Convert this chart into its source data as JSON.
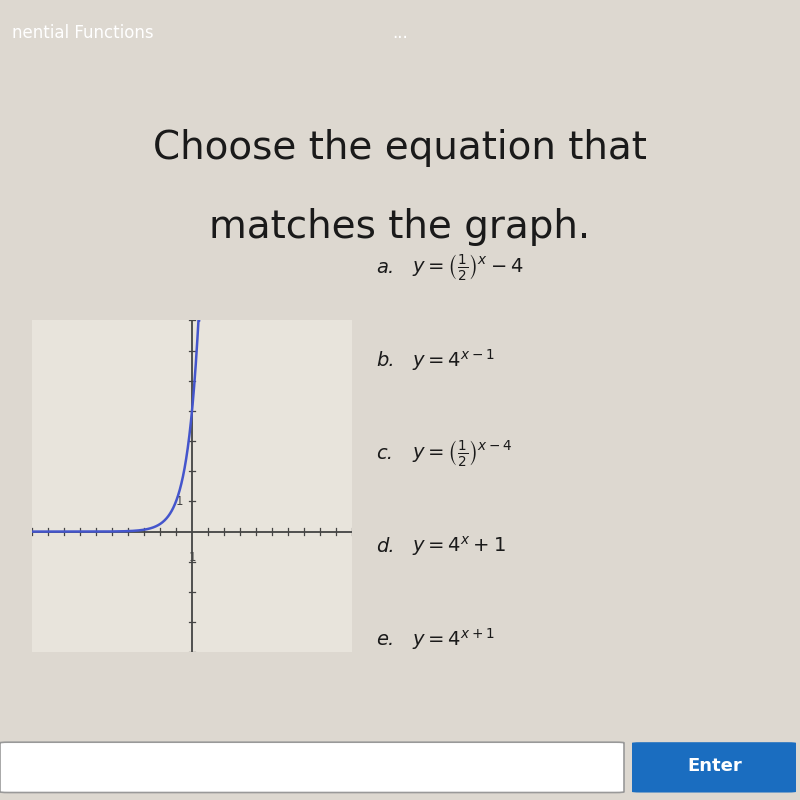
{
  "title_line1": "Choose the equation that",
  "title_line2": "matches the graph.",
  "title_fontsize": 28,
  "title_color": "#1a1a1a",
  "bg_color": "#ddd8d0",
  "content_bg": "#e8e4dc",
  "top_bar_color": "#2a7ab5",
  "top_bar_text": "nential Functions",
  "top_bar_dots": "...",
  "graph_xlim": [
    -10,
    10
  ],
  "graph_ylim": [
    -4,
    7
  ],
  "curve_color": "#4455cc",
  "curve_linewidth": 1.8,
  "axis_color": "#444444",
  "tick_color": "#444444",
  "graph_bg": "#e8e4dc",
  "options_a_label": "a.",
  "options_a_math": "$y = \\left(\\frac{1}{2}\\right)^x - 4$",
  "options_b_label": "b.",
  "options_b_math": "$y = 4^{x-1}$",
  "options_c_label": "c.",
  "options_c_math": "$y = \\left(\\frac{1}{2}\\right)^{x-4}$",
  "options_d_label": "d.",
  "options_d_math": "$y = 4^x + 1$",
  "options_e_label": "e.",
  "options_e_math": "$y = 4^{x+1}$",
  "enter_button_color": "#1a6dc0",
  "enter_button_text": "Enter",
  "enter_text_color": "#ffffff",
  "bottom_bar_color": "#c8c8c8",
  "sep_bar_color": "#b8a060"
}
